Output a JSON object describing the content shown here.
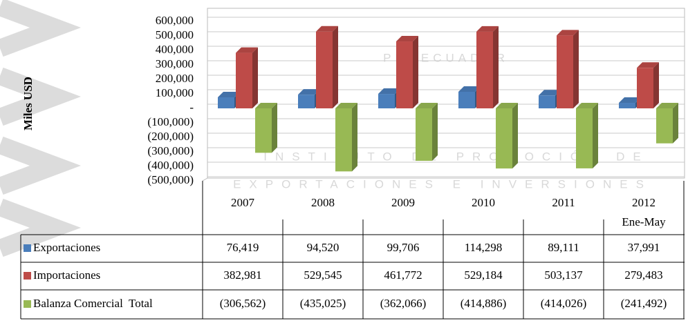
{
  "chart_data": {
    "type": "bar",
    "y_label": "Miles USD",
    "watermark": [
      "PROECUADOR",
      "INSTITUTO DE PROMOCIÓN DE",
      "EXPORTACIONES E INVERSIONES"
    ],
    "categories": [
      "2007",
      "2008",
      "2009",
      "2010",
      "2011",
      "2012 Ene-May"
    ],
    "series": [
      {
        "name": "Exportaciones",
        "color": "#4a7ebb",
        "values": [
          76419,
          94520,
          99706,
          114298,
          89111,
          37991
        ],
        "value_labels": [
          "76,419",
          "94,520",
          "99,706",
          "114,298",
          "89,111",
          "37,991"
        ]
      },
      {
        "name": "Importaciones",
        "color": "#be4b48",
        "values": [
          382981,
          529545,
          461772,
          529184,
          503137,
          279483
        ],
        "value_labels": [
          "382,981",
          "529,545",
          "461,772",
          "529,184",
          "503,137",
          "279,483"
        ]
      },
      {
        "name": "Balanza Comercial  Total",
        "color": "#98b954",
        "values": [
          -306562,
          -435025,
          -362066,
          -414886,
          -414026,
          -241492
        ],
        "value_labels": [
          "(306,562)",
          "(435,025)",
          "(362,066)",
          "(414,886)",
          "(414,026)",
          "(241,492)"
        ]
      }
    ],
    "ylim": [
      -500000,
      600000
    ],
    "yticks": [
      {
        "value": 600000,
        "label": "600,000"
      },
      {
        "value": 500000,
        "label": "500,000"
      },
      {
        "value": 400000,
        "label": "400,000"
      },
      {
        "value": 300000,
        "label": "300,000"
      },
      {
        "value": 200000,
        "label": "200,000"
      },
      {
        "value": 100000,
        "label": "100,000"
      },
      {
        "value": 0,
        "label": "-"
      },
      {
        "value": -100000,
        "label": "(100,000)"
      },
      {
        "value": -200000,
        "label": "(200,000)"
      },
      {
        "value": -300000,
        "label": "(300,000)"
      },
      {
        "value": -400000,
        "label": "(400,000)"
      },
      {
        "value": -500000,
        "label": "(500,000)"
      }
    ],
    "grid": true
  }
}
